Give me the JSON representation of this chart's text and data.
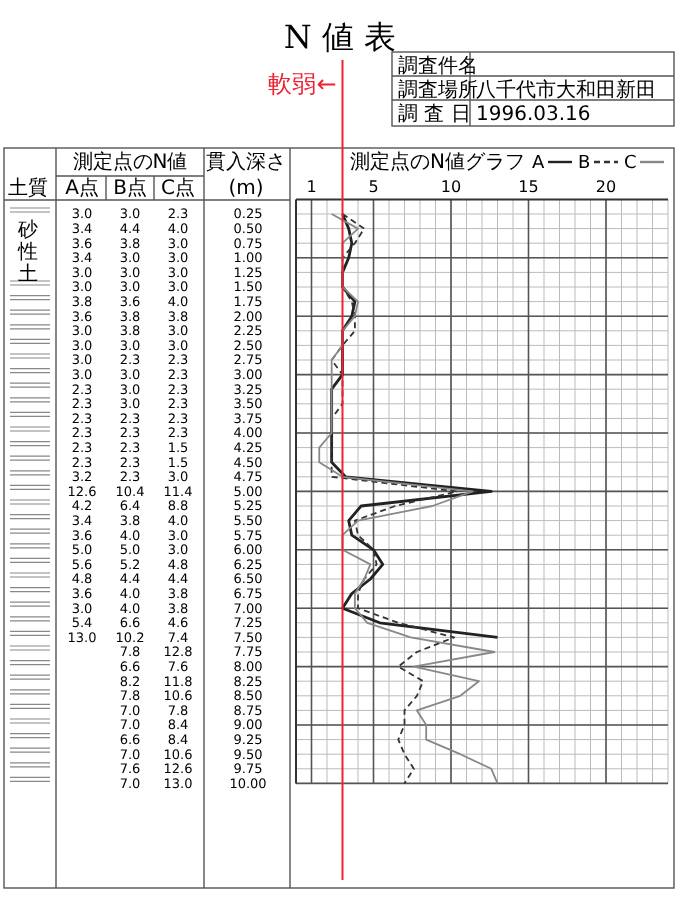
{
  "chart_data": {
    "type": "line",
    "orientation": "horizontal",
    "title": "N 値 表",
    "xlabel": "測定点のN値グラフ",
    "ylabel": "貫入深さ (m)",
    "categories": [
      "0.25",
      "0.50",
      "0.75",
      "1.00",
      "1.25",
      "1.50",
      "1.75",
      "2.00",
      "2.25",
      "2.50",
      "2.75",
      "3.00",
      "3.25",
      "3.50",
      "3.75",
      "4.00",
      "4.25",
      "4.50",
      "4.75",
      "5.00",
      "5.25",
      "5.50",
      "5.75",
      "6.00",
      "6.25",
      "6.50",
      "6.75",
      "7.00",
      "7.25",
      "7.50",
      "7.75",
      "8.00",
      "8.25",
      "8.50",
      "8.75",
      "9.00",
      "9.25",
      "9.50",
      "9.75",
      "10.00"
    ],
    "series": [
      {
        "name": "A",
        "color": "#222222",
        "line_style": "solid",
        "values": [
          3.0,
          3.4,
          3.6,
          3.4,
          3.0,
          3.0,
          3.8,
          3.6,
          3.0,
          3.0,
          3.0,
          3.0,
          2.3,
          2.3,
          2.3,
          2.3,
          2.3,
          2.3,
          3.2,
          12.6,
          4.2,
          3.4,
          3.6,
          5.0,
          5.6,
          4.8,
          3.6,
          3.0,
          5.4,
          13.0,
          null,
          null,
          null,
          null,
          null,
          null,
          null,
          null,
          null,
          null
        ],
        "value_labels": [
          "3.0",
          "3.4",
          "3.6",
          "3.4",
          "3.0",
          "3.0",
          "3.8",
          "3.6",
          "3.0",
          "3.0",
          "3.0",
          "3.0",
          "2.3",
          "2.3",
          "2.3",
          "2.3",
          "2.3",
          "2.3",
          "3.2",
          "12.6",
          "4.2",
          "3.4",
          "3.6",
          "5.0",
          "5.6",
          "4.8",
          "3.6",
          "3.0",
          "5.4",
          "13.0",
          null,
          null,
          null,
          null,
          null,
          null,
          null,
          null,
          null,
          null
        ]
      },
      {
        "name": "B",
        "color": "#333333",
        "line_style": "dashed",
        "values": [
          3.0,
          4.4,
          3.8,
          3.0,
          3.0,
          3.0,
          3.6,
          3.8,
          3.8,
          3.0,
          2.3,
          3.0,
          3.0,
          3.0,
          2.3,
          2.3,
          2.3,
          2.3,
          2.3,
          10.4,
          6.4,
          3.8,
          4.0,
          5.0,
          5.2,
          4.4,
          4.0,
          4.0,
          6.6,
          10.2,
          7.8,
          6.6,
          8.2,
          7.8,
          7.0,
          7.0,
          6.6,
          7.0,
          7.6,
          7.0
        ],
        "value_labels": [
          "3.0",
          "4.4",
          "3.8",
          "3.0",
          "3.0",
          "3.0",
          "3.6",
          "3.8",
          "3.8",
          "3.0",
          "2.3",
          "3.0",
          "3.0",
          "3.0",
          "2.3",
          "2.3",
          "2.3",
          "2.3",
          "2.3",
          "10.4",
          "6.4",
          "3.8",
          "4.0",
          "5.0",
          "5.2",
          "4.4",
          "4.0",
          "4.0",
          "6.6",
          "10.2",
          "7.8",
          "6.6",
          "8.2",
          "7.8",
          "7.0",
          "7.0",
          "6.6",
          "7.0",
          "7.6",
          "7.0"
        ]
      },
      {
        "name": "C",
        "color": "#888888",
        "line_style": "solid",
        "values": [
          2.3,
          4.0,
          3.0,
          3.0,
          3.0,
          3.0,
          4.0,
          3.8,
          3.0,
          3.0,
          2.3,
          2.3,
          2.3,
          2.3,
          2.3,
          2.3,
          1.5,
          1.5,
          3.0,
          11.4,
          8.8,
          4.0,
          3.0,
          3.0,
          4.8,
          4.4,
          3.8,
          3.8,
          4.6,
          7.4,
          12.8,
          7.6,
          11.8,
          10.6,
          7.8,
          8.4,
          8.4,
          10.6,
          12.6,
          13.0
        ],
        "value_labels": [
          "2.3",
          "4.0",
          "3.0",
          "3.0",
          "3.0",
          "3.0",
          "4.0",
          "3.8",
          "3.0",
          "3.0",
          "2.3",
          "2.3",
          "2.3",
          "2.3",
          "2.3",
          "2.3",
          "1.5",
          "1.5",
          "3.0",
          "11.4",
          "8.8",
          "4.0",
          "3.0",
          "3.0",
          "4.8",
          "4.4",
          "3.8",
          "3.8",
          "4.6",
          "7.4",
          "12.8",
          "7.6",
          "11.8",
          "10.6",
          "7.8",
          "8.4",
          "8.4",
          "10.6",
          "12.6",
          "13.0"
        ]
      }
    ],
    "xlim": [
      0,
      24
    ],
    "xticks": [
      1,
      5,
      10,
      15,
      20
    ],
    "grid": true,
    "legend": "top",
    "ref_lines": [
      {
        "axis": "x",
        "value": 3,
        "label": "軟弱←",
        "color": "#ee2233"
      }
    ],
    "annotations": [
      "土質",
      "測定点のN値",
      "A点",
      "B点",
      "C点",
      "砂性土",
      "調査件名",
      "調査場所",
      "八千代市大和田新田",
      "調 査 日",
      "1996.03.16"
    ]
  }
}
